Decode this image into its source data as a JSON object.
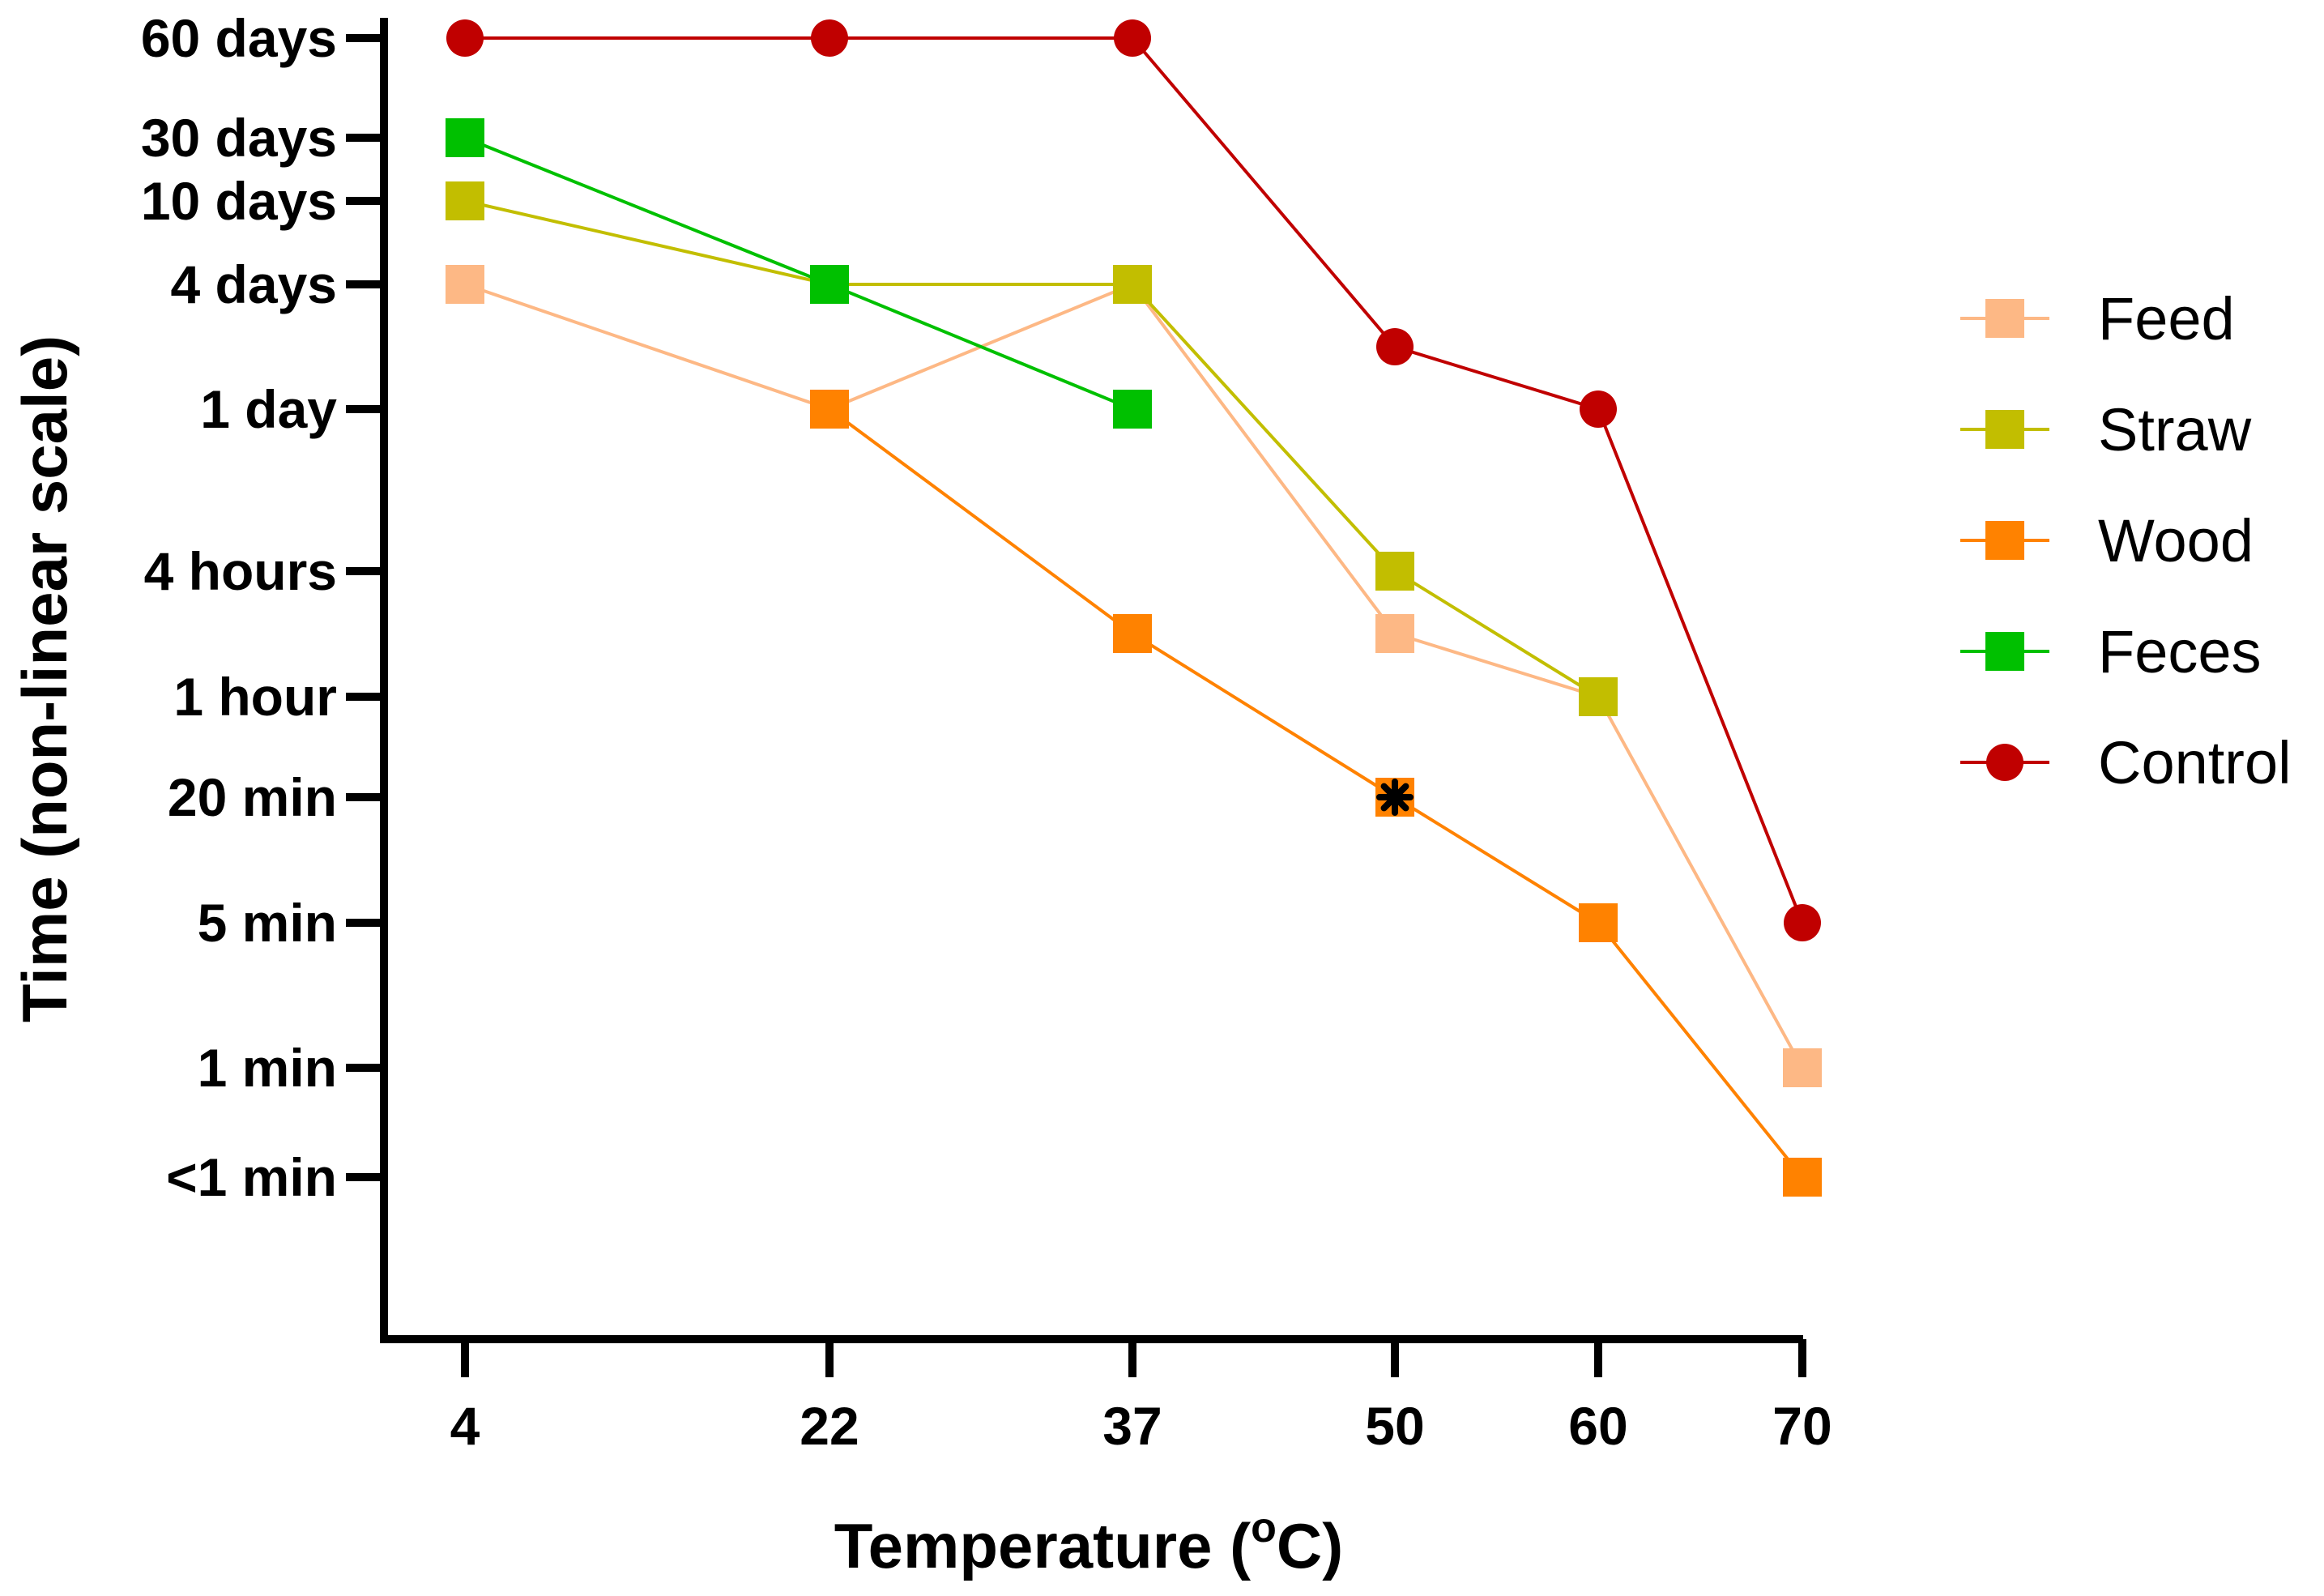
{
  "chart_data": {
    "type": "line",
    "x": [
      4,
      22,
      37,
      50,
      60,
      70
    ],
    "xlabel": "Temperature (°C)",
    "xlabel_parts": {
      "before": "Temperature (",
      "sup": "o",
      "after": "C)"
    },
    "ylabel": "Time (non-linear scale)",
    "y_scale": "non-linear (categorical levels)",
    "y_ticks": [
      "60 days",
      "30 days",
      "10 days",
      "4 days",
      "1 day",
      "4 hours",
      "1 hour",
      "20 min",
      "5 min",
      "1 min",
      "<1 min"
    ],
    "grid": false,
    "legend_position": "right",
    "series": [
      {
        "name": "Feed",
        "color": "#FDB885",
        "marker": "square",
        "values": [
          "4 days",
          "1 day",
          "4 days",
          "2 hours",
          "1 hour",
          "1 min"
        ]
      },
      {
        "name": "Straw",
        "color": "#C2BE00",
        "marker": "square",
        "values": [
          "10 days",
          "4 days",
          "4 days",
          "4 hours",
          "1 hour",
          null
        ]
      },
      {
        "name": "Wood",
        "color": "#FF8200",
        "marker": "square",
        "values": [
          null,
          "1 day",
          "2 hours",
          "20 min",
          "5 min",
          "<1 min"
        ]
      },
      {
        "name": "Feces",
        "color": "#00C000",
        "marker": "square",
        "values": [
          "30 days",
          "4 days",
          "1 day",
          null,
          null,
          null
        ]
      },
      {
        "name": "Control",
        "color": "#C00000",
        "marker": "circle",
        "values": [
          "60 days",
          "60 days",
          "60 days",
          "2 days",
          "1 day",
          "5 min"
        ]
      }
    ],
    "annotations": [
      {
        "text": "*",
        "x": 50,
        "y": "20 min",
        "note_color": "#000000"
      }
    ]
  }
}
